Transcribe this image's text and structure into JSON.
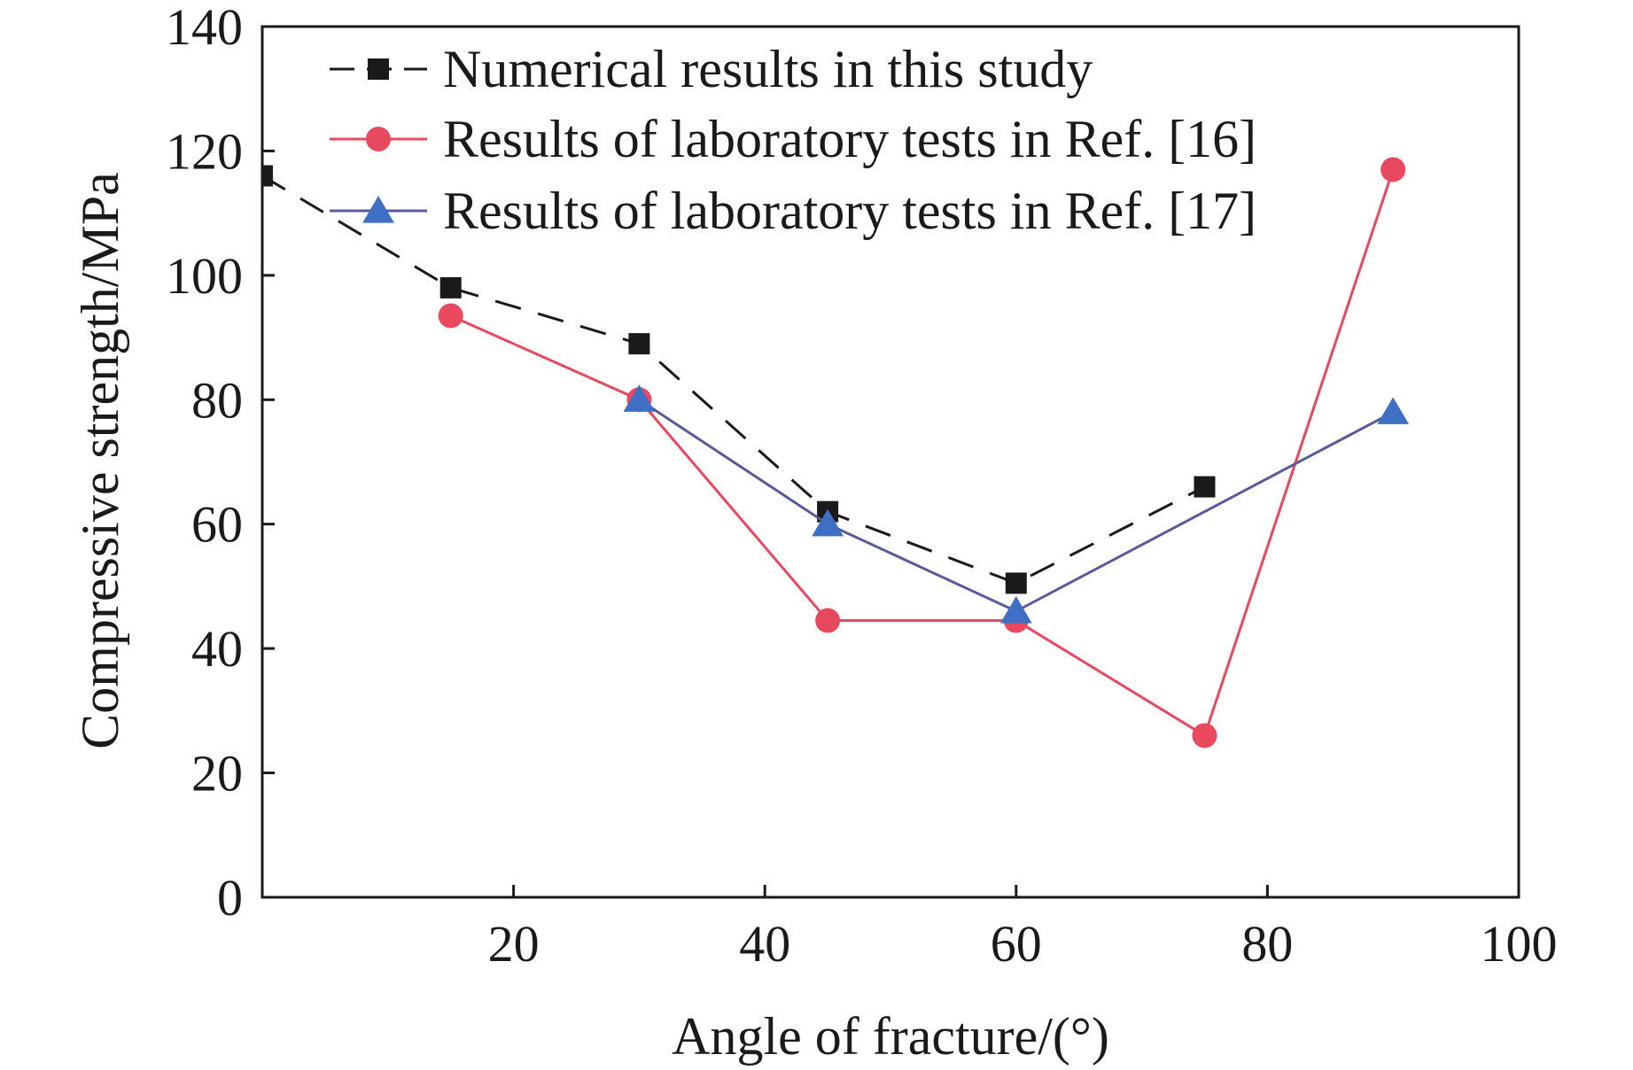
{
  "chart_data": {
    "type": "line",
    "title": "",
    "xlabel": "Angle of fracture/(°)",
    "ylabel": "Compressive strength/MPa",
    "xlim": [
      0,
      100
    ],
    "ylim": [
      0,
      140
    ],
    "xticks": [
      20,
      40,
      60,
      80,
      100
    ],
    "yticks": [
      0,
      20,
      40,
      60,
      80,
      100,
      120,
      140
    ],
    "grid": false,
    "legend_position": "top-left",
    "series": [
      {
        "name": "Numerical results in this study",
        "color": "#1a1a1a",
        "marker": "square",
        "line_style": "dashed",
        "x": [
          0,
          15,
          30,
          45,
          60,
          75
        ],
        "y": [
          116,
          98,
          89,
          62,
          50.5,
          66
        ]
      },
      {
        "name": "Results of laboratory tests in Ref. [16]",
        "color": "#e8495f",
        "marker": "circle",
        "line_style": "solid",
        "x": [
          15,
          30,
          45,
          60,
          75,
          90
        ],
        "y": [
          93.5,
          80,
          44.5,
          44.5,
          26,
          117
        ]
      },
      {
        "name": "Results of laboratory tests in Ref. [17]",
        "color": "#3f6fc4",
        "marker": "triangle",
        "line_style": "solid",
        "line_color": "#5a5a9a",
        "x": [
          30,
          45,
          60,
          90
        ],
        "y": [
          80,
          60,
          46,
          78
        ]
      }
    ]
  }
}
